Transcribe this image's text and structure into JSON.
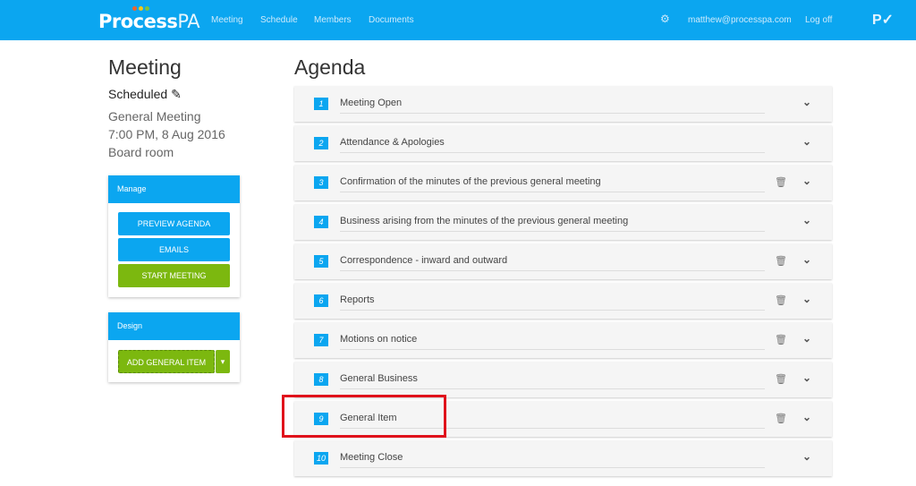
{
  "header": {
    "logo_main": "Process",
    "logo_suffix": "PA",
    "nav": [
      "Meeting",
      "Schedule",
      "Members",
      "Documents"
    ],
    "user_email": "matthew@processpa.com",
    "logoff": "Log off",
    "icons": [
      "gear-icon",
      "save-check-icon"
    ]
  },
  "meeting": {
    "title": "Meeting",
    "status": "Scheduled",
    "type": "General Meeting",
    "datetime": "7:00 PM, 8 Aug 2016",
    "location": "Board room"
  },
  "manage": {
    "title": "Manage",
    "buttons": [
      "PREVIEW AGENDA",
      "EMAILS",
      "START MEETING"
    ]
  },
  "design": {
    "title": "Design",
    "add_button": "ADD GENERAL ITEM"
  },
  "agenda": {
    "title": "Agenda",
    "items": [
      {
        "num": "1",
        "label": "Meeting Open",
        "deletable": false
      },
      {
        "num": "2",
        "label": "Attendance & Apologies",
        "deletable": false
      },
      {
        "num": "3",
        "label": "Confirmation of the minutes of the previous general meeting",
        "deletable": true
      },
      {
        "num": "4",
        "label": "Business arising from the minutes of the previous general meeting",
        "deletable": false
      },
      {
        "num": "5",
        "label": "Correspondence - inward and outward",
        "deletable": true
      },
      {
        "num": "6",
        "label": "Reports",
        "deletable": true
      },
      {
        "num": "7",
        "label": "Motions on notice",
        "deletable": true
      },
      {
        "num": "8",
        "label": "General Business",
        "deletable": true
      },
      {
        "num": "9",
        "label": "General Item",
        "deletable": true,
        "highlighted": true
      },
      {
        "num": "10",
        "label": "Meeting Close",
        "deletable": false
      }
    ]
  },
  "colors": {
    "primary": "#0ba6f0",
    "success": "#7cb80f",
    "highlight": "#e0121b"
  }
}
